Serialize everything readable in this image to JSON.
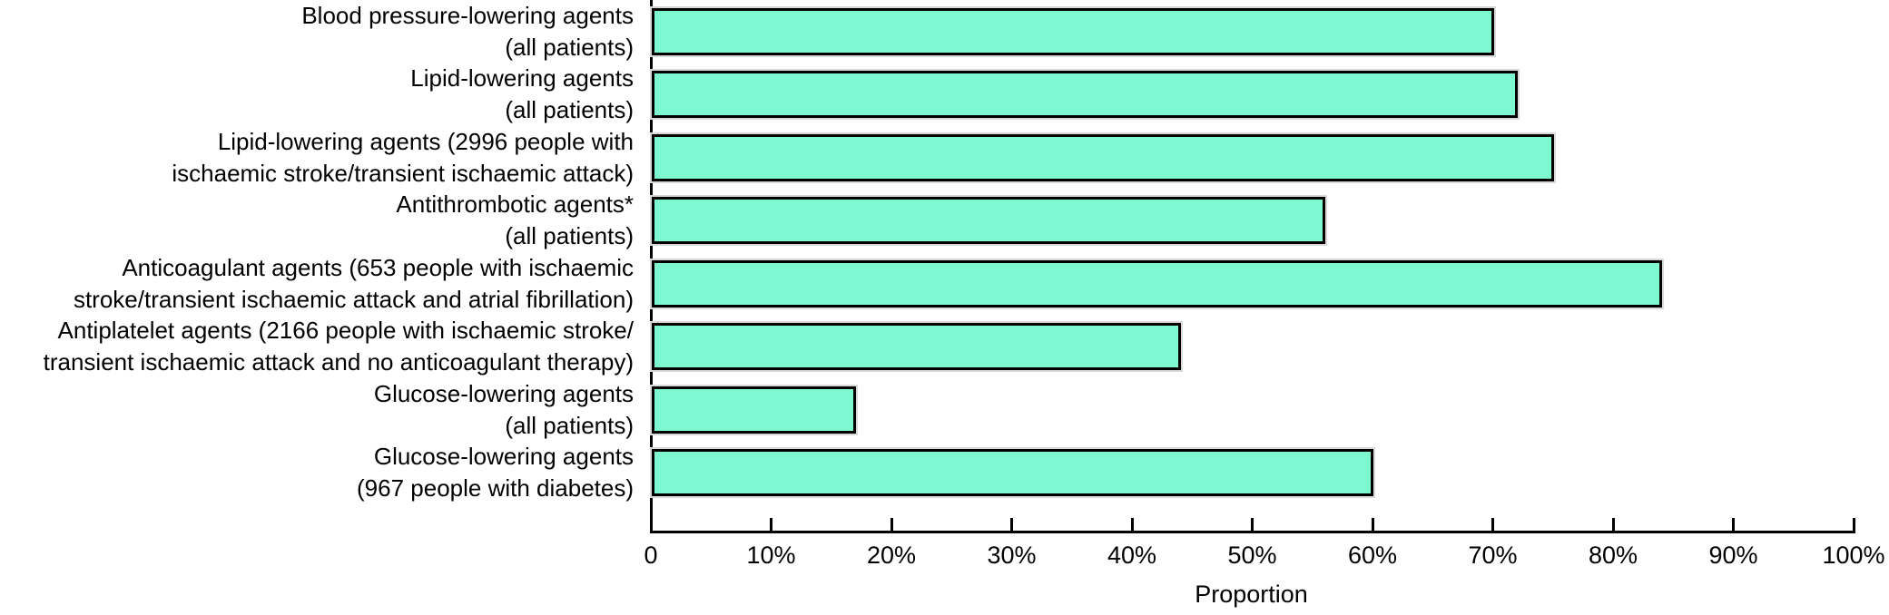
{
  "chart_data": {
    "type": "bar",
    "orientation": "horizontal",
    "title": "",
    "xlabel": "Proportion",
    "ylabel": "",
    "xlim": [
      0,
      100
    ],
    "grid": false,
    "legend": false,
    "bar_color": "#7EF8D1",
    "bar_border_color": "#000000",
    "x_tick_labels": [
      "0",
      "10%",
      "20%",
      "30%",
      "40%",
      "50%",
      "60%",
      "70%",
      "80%",
      "90%",
      "100%"
    ],
    "categories": [
      [
        "Blood pressure-lowering agents",
        "(all patients)"
      ],
      [
        "Lipid-lowering agents",
        "(all patients)"
      ],
      [
        "Lipid-lowering agents (2996 people with",
        "ischaemic stroke/transient ischaemic attack)"
      ],
      [
        "Antithrombotic agents*",
        "(all patients)"
      ],
      [
        "Anticoagulant agents (653 people with ischaemic",
        "stroke/transient ischaemic attack and atrial fibrillation)"
      ],
      [
        "Antiplatelet agents (2166 people with ischaemic stroke/",
        "transient ischaemic attack and no anticoagulant therapy)"
      ],
      [
        "Glucose-lowering agents",
        "(all patients)"
      ],
      [
        "Glucose-lowering agents",
        "(967 people with diabetes)"
      ]
    ],
    "values": [
      70,
      72,
      75,
      56,
      84,
      44,
      17,
      60
    ]
  }
}
